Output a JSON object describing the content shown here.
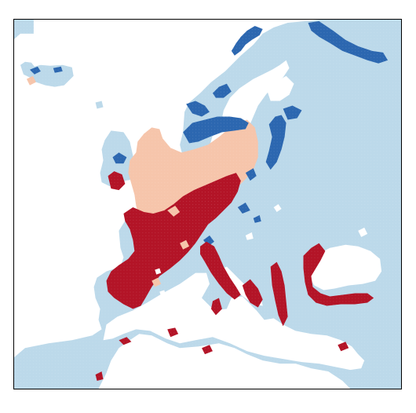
{
  "map": {
    "type": "categorical-raster-map",
    "region": "Europe",
    "colors": {
      "background": "#ffffff",
      "border": "#000000",
      "light_blue": "#bcd9ea",
      "dark_blue": "#2c67b0",
      "peach": "#f6c5ab",
      "dark_red": "#b31427"
    }
  }
}
